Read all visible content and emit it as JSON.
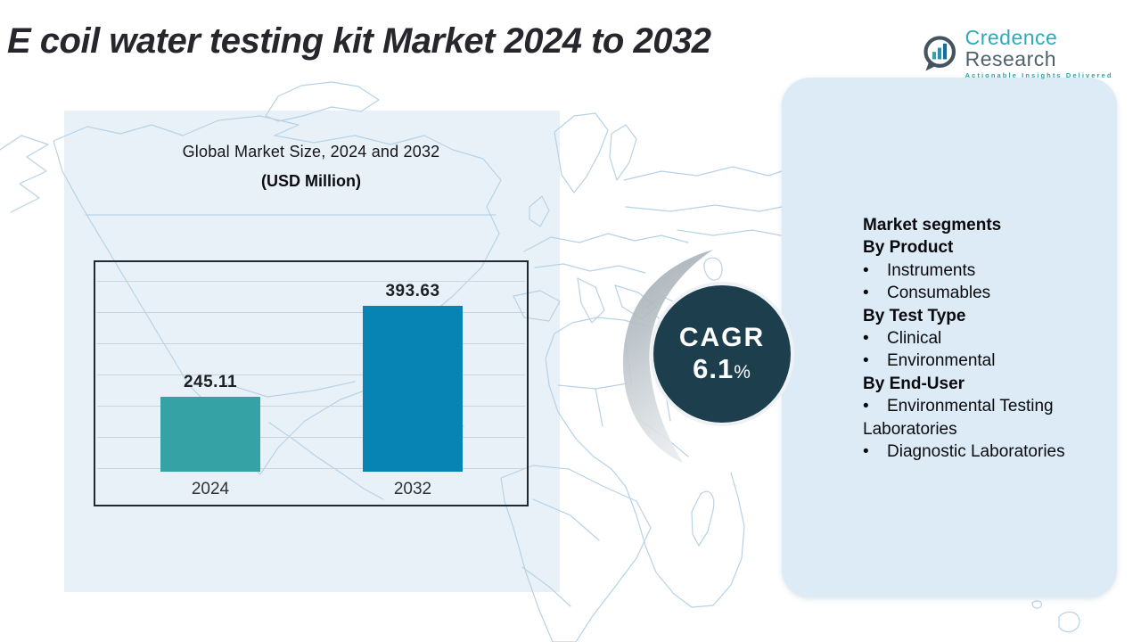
{
  "page": {
    "title": "E coil water testing kit Market 2024 to 2032"
  },
  "logo": {
    "name_part1": "Credence",
    "name_part2": "Research",
    "tagline": "Actionable Insights Delivered",
    "brand_teal": "#31a9b8",
    "brand_slate": "#50616e"
  },
  "chart_data": {
    "type": "bar",
    "title": "Global Market Size, 2024 and 2032",
    "subtitle": "(USD Million)",
    "categories": [
      "2024",
      "2032"
    ],
    "values": [
      245.11,
      393.63
    ],
    "value_labels": [
      "245.11",
      "393.63"
    ],
    "bar_colors": [
      "#35a3a5",
      "#0884b4"
    ],
    "grid": true,
    "gridline_count": 7,
    "legend": false,
    "xlabel": "",
    "ylabel": ""
  },
  "cagr": {
    "label": "CAGR",
    "value": "6.1",
    "percent_sign": "%",
    "circle_color": "#1c3e4d"
  },
  "segments": {
    "heading": "Market segments",
    "groups": [
      {
        "title": "By Product",
        "items": [
          "Instruments",
          "Consumables"
        ]
      },
      {
        "title": "By Test Type",
        "items": [
          "Clinical",
          "Environmental"
        ]
      },
      {
        "title": "By End-User",
        "items": [
          "Environmental Testing Laboratories",
          "Diagnostic Laboratories"
        ]
      }
    ]
  }
}
